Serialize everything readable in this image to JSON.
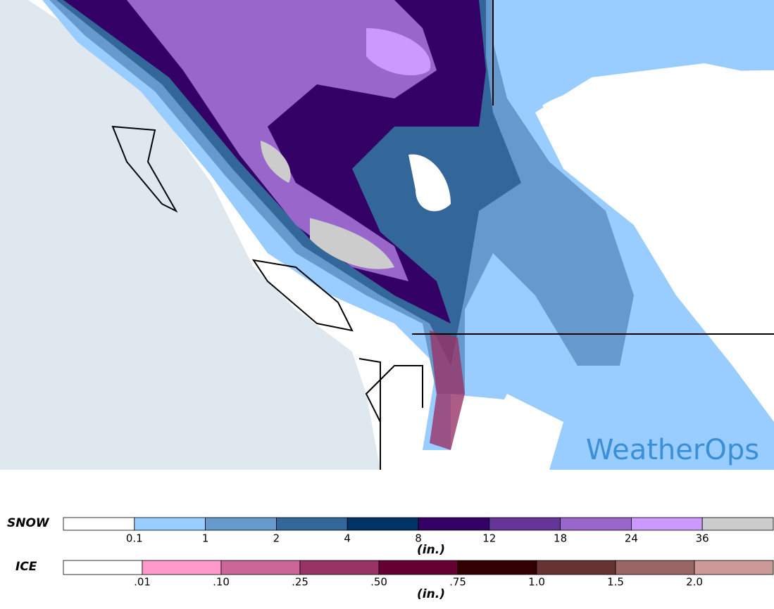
{
  "map": {
    "logo": "WeatherOps"
  },
  "legend": {
    "snow": {
      "label": "SNOW",
      "unit": "(in.)",
      "colors": [
        "#ffffff",
        "#99ccff",
        "#6699cc",
        "#336699",
        "#003366",
        "#330066",
        "#663399",
        "#9966cc",
        "#cc99ff",
        "#cccccc"
      ],
      "ticks": [
        "0.1",
        "1",
        "2",
        "4",
        "8",
        "12",
        "18",
        "24",
        "36"
      ]
    },
    "ice": {
      "label": "ICE",
      "unit": "(in.)",
      "colors": [
        "#ffffff",
        "#ff99cc",
        "#cc6699",
        "#993366",
        "#660033",
        "#330000",
        "#663333",
        "#996666",
        "#cc9999"
      ],
      "ticks": [
        ".01",
        ".10",
        ".25",
        ".50",
        ".75",
        "1.0",
        "1.5",
        "2.0"
      ]
    }
  }
}
